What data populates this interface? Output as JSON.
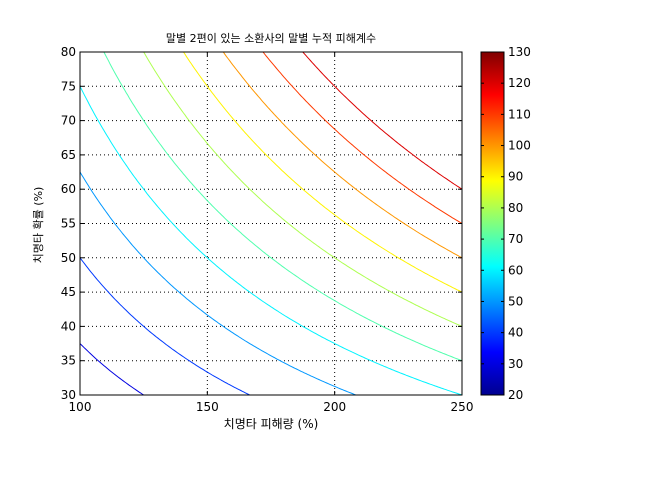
{
  "chart_data": {
    "type": "contour",
    "title": "말별 2편이 있는 소환사의 말별 누적 피해계수",
    "xlabel": "치명타 피해량 (%)",
    "ylabel": "치명타 확률 (%)",
    "xlim": [
      100,
      250
    ],
    "ylim": [
      30,
      80
    ],
    "xticks": [
      100,
      150,
      200,
      250
    ],
    "yticks": [
      30,
      35,
      40,
      45,
      50,
      55,
      60,
      65,
      70,
      75,
      80
    ],
    "grid": true,
    "contour_levels": [
      20,
      30,
      40,
      50,
      60,
      70,
      80,
      90,
      100,
      110,
      120
    ],
    "z_model": "z = 20 * x * y / 2500",
    "colorbar": {
      "range": [
        20,
        130
      ],
      "ticks": [
        20,
        30,
        40,
        50,
        60,
        70,
        80,
        90,
        100,
        110,
        120,
        130
      ],
      "colormap": "jet"
    }
  }
}
